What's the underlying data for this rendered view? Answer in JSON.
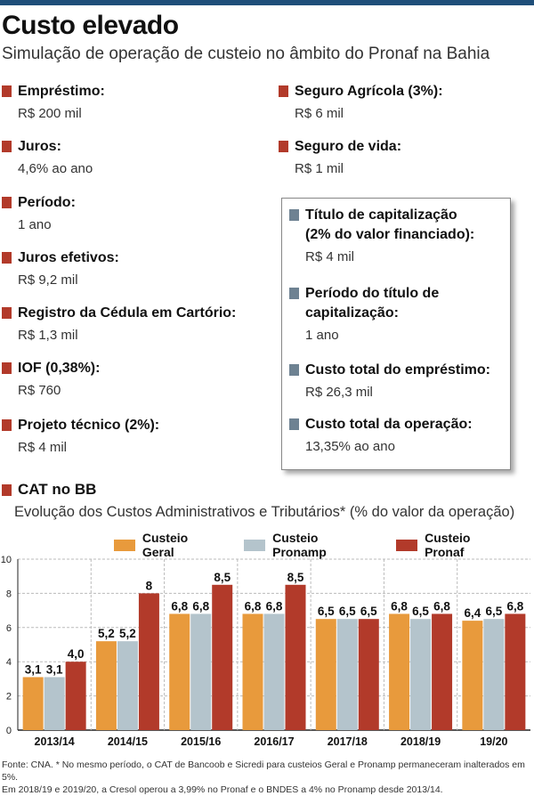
{
  "header": {
    "title": "Custo elevado",
    "subtitle": "Simulação de operação de custeio no âmbito do Pronaf na Bahia"
  },
  "left_items": [
    {
      "label": "Empréstimo:",
      "value": "R$ 200 mil"
    },
    {
      "label": "Juros:",
      "value": "4,6% ao ano"
    },
    {
      "label": "Período:",
      "value": "1 ano"
    },
    {
      "label": "Juros efetivos:",
      "value": "R$ 9,2 mil"
    },
    {
      "label": "Registro da Cédula em Cartório:",
      "value": "R$ 1,3 mil"
    },
    {
      "label": "IOF (0,38%):",
      "value": "R$ 760"
    },
    {
      "label": "Projeto técnico (2%):",
      "value": "R$ 4 mil"
    }
  ],
  "right_items": [
    {
      "label": "Seguro Agrícola (3%):",
      "value": "R$ 6 mil"
    },
    {
      "label": "Seguro de vida:",
      "value": "R$ 1 mil"
    }
  ],
  "box_items": [
    {
      "label_lines": [
        "Título de capitalização",
        "(2% do valor financiado):"
      ],
      "value": "R$ 4 mil"
    },
    {
      "label_lines": [
        "Período do título de",
        "capitalização:"
      ],
      "value": "1 ano"
    },
    {
      "label_lines": [
        "Custo total do empréstimo:"
      ],
      "value": "R$ 26,3 mil"
    },
    {
      "label_lines": [
        "Custo total da operação:"
      ],
      "value": "13,35% ao ano"
    }
  ],
  "colors": {
    "marker_red": "#b23a2a",
    "marker_gray": "#6e8292",
    "top_bar": "#1f4e79"
  },
  "chart_data": {
    "type": "bar",
    "section_title": "CAT no BB",
    "title": "Evolução dos Custos Administrativos e Tributários* (% do valor da operação)",
    "categories": [
      "2013/14",
      "2014/15",
      "2015/16",
      "2016/17",
      "2017/18",
      "2018/19",
      "19/20"
    ],
    "series": [
      {
        "name": "Custeio Geral",
        "color": "#e89a3c",
        "values": [
          3.1,
          5.2,
          6.8,
          6.8,
          6.5,
          6.8,
          6.4
        ],
        "labels": [
          "3,1",
          "5,2",
          "6,8",
          "6,8",
          "6,5",
          "6,8",
          "6,4"
        ]
      },
      {
        "name": "Custeio Pronamp",
        "color": "#b4c4cc",
        "values": [
          3.1,
          5.2,
          6.8,
          6.8,
          6.5,
          6.5,
          6.5
        ],
        "labels": [
          "3,1",
          "5,2",
          "6,8",
          "6,8",
          "6,5",
          "6,5",
          "6,5"
        ]
      },
      {
        "name": "Custeio Pronaf",
        "color": "#b23a2a",
        "values": [
          4.0,
          8,
          8.5,
          8.5,
          6.5,
          6.8,
          6.8
        ],
        "labels": [
          "4,0",
          "8",
          "8,5",
          "8,5",
          "6,5",
          "6,8",
          "6,8"
        ]
      }
    ],
    "ylim": [
      0,
      10
    ],
    "yticks": [
      0,
      2,
      4,
      6,
      8,
      10
    ],
    "grid": true,
    "legend": "top"
  },
  "footnote": {
    "line1": "Fonte: CNA. * No mesmo período, o CAT de Bancoob e Sicredi para custeios Geral e Pronamp permaneceram inalterados em 5%.",
    "line2": "Em 2018/19 e 2019/20, a Cresol operou a 3,99% no Pronaf e o BNDES a 4% no Pronamp desde 2013/14."
  }
}
